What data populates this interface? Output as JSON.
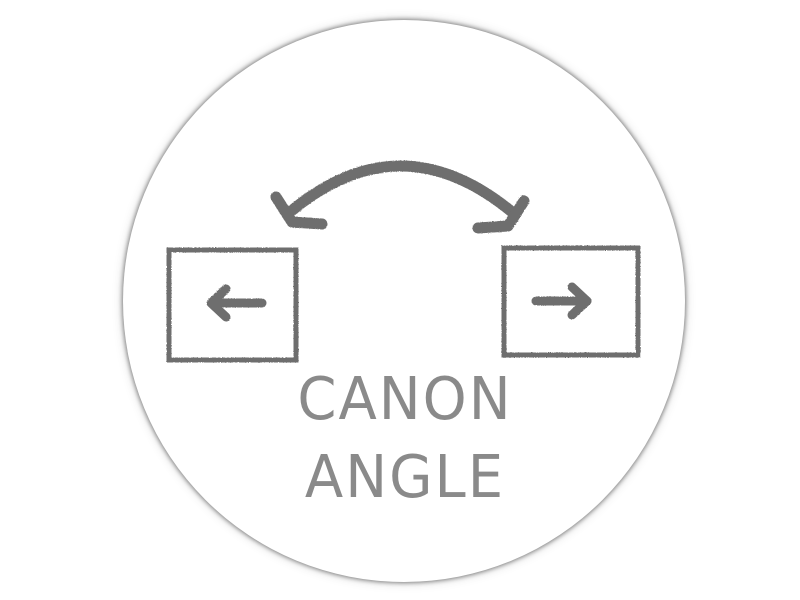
{
  "logo": {
    "line1": "CANON",
    "line2": "ANGLE",
    "text_color": "#858585",
    "stroke_color": "#6e6e6e",
    "icons": [
      "curved-double-arrow-icon",
      "left-arrow-key-icon",
      "right-arrow-key-icon"
    ]
  }
}
